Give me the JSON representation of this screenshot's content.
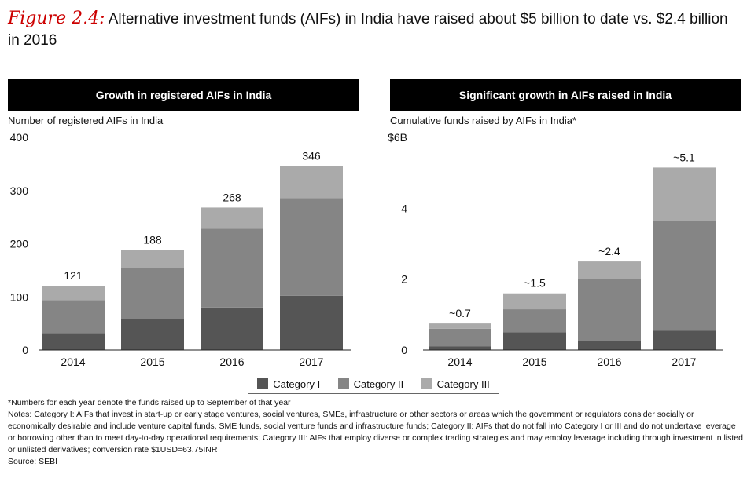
{
  "title": {
    "label": "Figure 2.4:",
    "text": "Alternative investment funds (AIFs) in India have raised about $5 billion to date vs. $2.4 billion in 2016"
  },
  "colors": {
    "category_1": "#555555",
    "category_2": "#858585",
    "category_3": "#aaaaaa",
    "header_bg": "#000000"
  },
  "chart_data": [
    {
      "type": "bar",
      "stacked": true,
      "panel_title": "Growth in registered AIFs in India",
      "ylabel": "Number of registered AIFs in India",
      "categories": [
        "2014",
        "2015",
        "2016",
        "2017"
      ],
      "ylim": [
        0,
        400
      ],
      "ytick_values": [
        0,
        100,
        200,
        300,
        400
      ],
      "yticks": [
        "0",
        "100",
        "200",
        "300",
        "400"
      ],
      "series": [
        {
          "name": "Category I",
          "values": [
            32,
            59,
            80,
            102
          ]
        },
        {
          "name": "Category II",
          "values": [
            62,
            96,
            148,
            184
          ]
        },
        {
          "name": "Category III",
          "values": [
            27,
            33,
            40,
            60
          ]
        }
      ],
      "total_labels": [
        "121",
        "188",
        "268",
        "346"
      ]
    },
    {
      "type": "bar",
      "stacked": true,
      "panel_title": "Significant growth in AIFs raised in India",
      "ylabel": "Cumulative funds raised by AIFs in India*",
      "categories": [
        "2014",
        "2015",
        "2016",
        "2017"
      ],
      "ylim": [
        0,
        6
      ],
      "ytick_values": [
        0,
        2,
        4,
        6
      ],
      "yticks": [
        "0",
        "2",
        "4",
        "$6B"
      ],
      "series": [
        {
          "name": "Category I",
          "values": [
            0.1,
            0.5,
            0.25,
            0.55
          ]
        },
        {
          "name": "Category II",
          "values": [
            0.5,
            0.65,
            1.75,
            3.1
          ]
        },
        {
          "name": "Category III",
          "values": [
            0.15,
            0.45,
            0.5,
            1.5
          ]
        }
      ],
      "total_labels": [
        "~0.7",
        "~1.5",
        "~2.4",
        "~5.1"
      ]
    }
  ],
  "legend": [
    "Category I",
    "Category II",
    "Category III"
  ],
  "footnotes": {
    "asterisk": "*Numbers for each year denote the funds raised up to September of that year",
    "notes": "Notes: Category I: AIFs that invest in start-up or early stage ventures, social ventures, SMEs, infrastructure or other sectors or areas which the government or regulators consider socially or economically desirable and include venture capital funds, SME funds, social venture funds and infrastructure funds; Category II: AIFs that do not fall into Category I or III and do not undertake leverage or borrowing other than to meet day-to-day operational requirements; Category III: AIFs that employ diverse or complex trading strategies and may employ leverage including through investment in listed or unlisted derivatives; conversion rate $1USD=63.75INR",
    "source": "Source: SEBI"
  }
}
